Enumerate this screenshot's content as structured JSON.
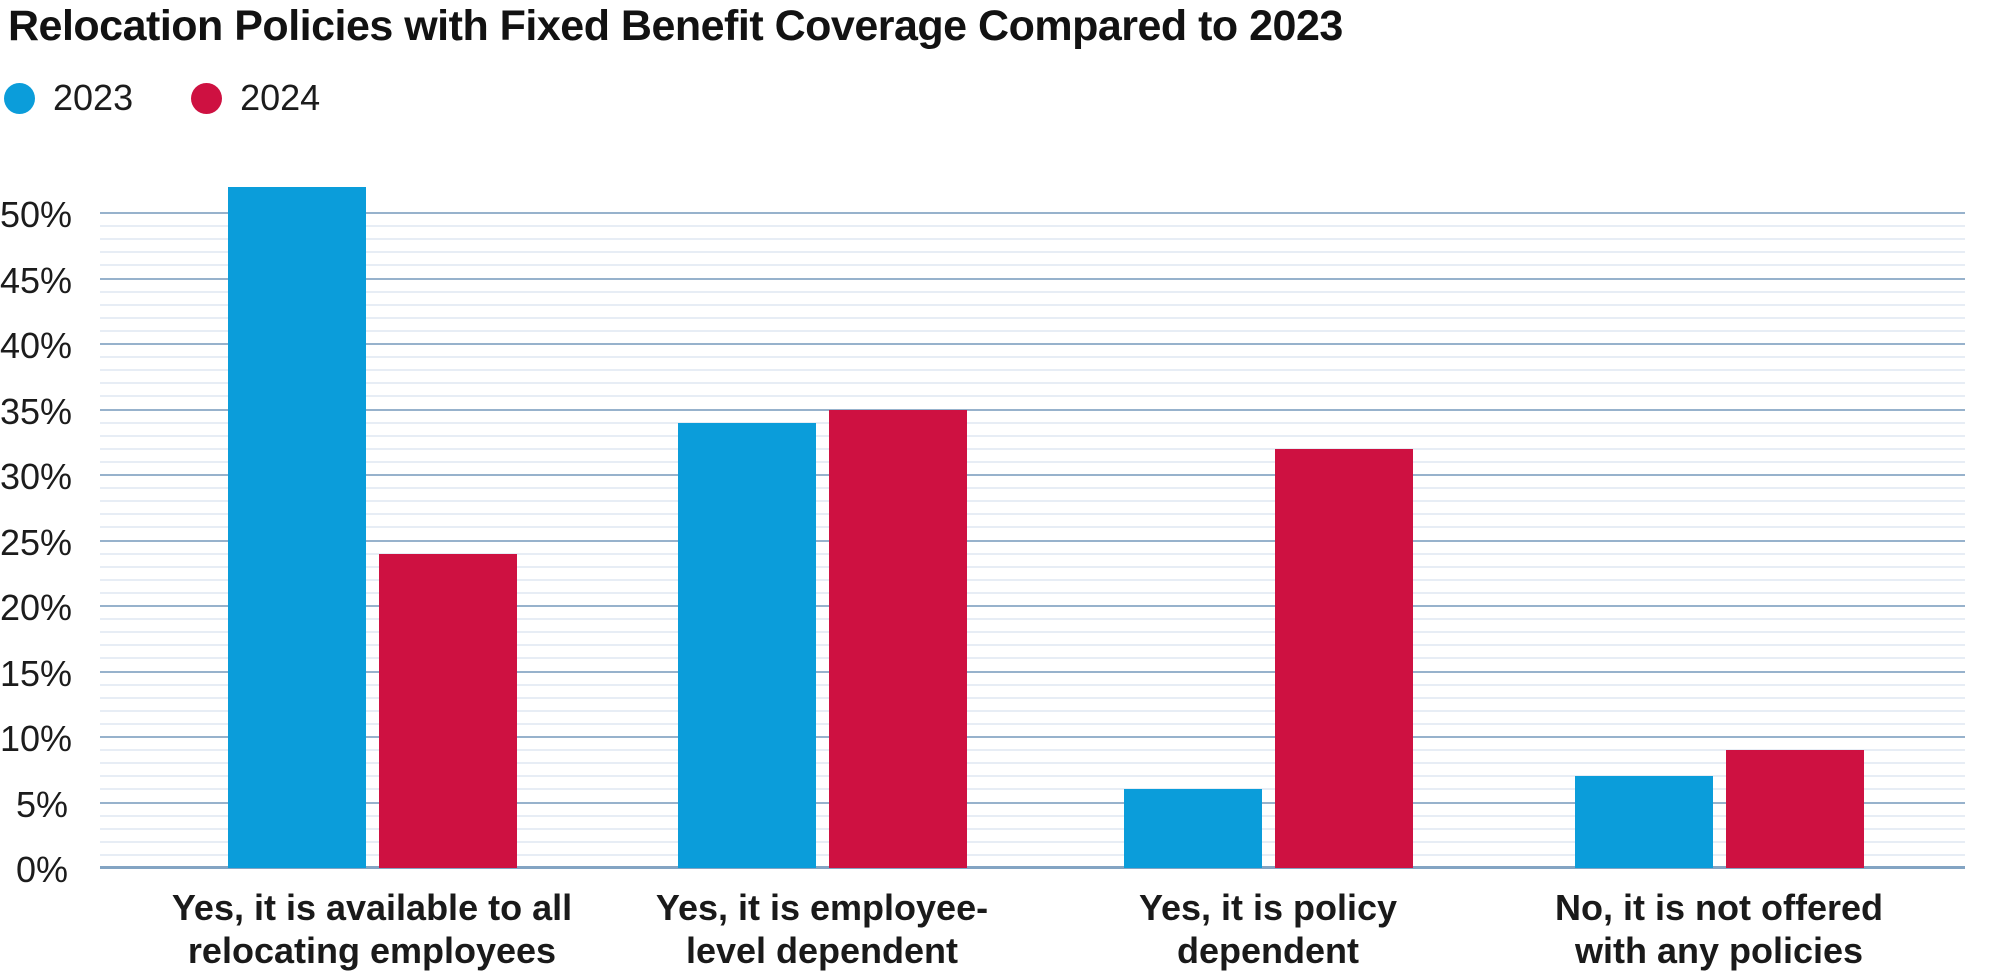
{
  "title": "Relocation Policies with Fixed Benefit Coverage Compared to 2023",
  "legend": {
    "items": [
      {
        "label": "2023",
        "color": "#0B9DDA"
      },
      {
        "label": "2024",
        "color": "#CE1141"
      }
    ]
  },
  "colors": {
    "series_2023": "#0B9DDA",
    "series_2024": "#CE1141",
    "text": "#1a1a1a",
    "major_gridline": "#97B2CC",
    "minor_gridline": "#E7EDF5",
    "axis_line": "#83A4C3"
  },
  "chart_data": {
    "type": "bar",
    "title": "Relocation Policies with Fixed Benefit Coverage Compared to 2023",
    "categories": [
      "Yes, it is available to all relocating employees",
      "Yes, it is employee-level dependent",
      "Yes, it is policy dependent",
      "No, it is not offered with any policies"
    ],
    "category_lines": [
      [
        "Yes, it is available to all",
        "relocating employees"
      ],
      [
        "Yes, it is employee-",
        "level dependent"
      ],
      [
        "Yes, it is policy",
        "dependent"
      ],
      [
        "No, it is not offered",
        "with any policies"
      ]
    ],
    "series": [
      {
        "name": "2023",
        "color": "#0B9DDA",
        "values": [
          52,
          34,
          6,
          7
        ]
      },
      {
        "name": "2024",
        "color": "#CE1141",
        "values": [
          24,
          35,
          32,
          9
        ]
      }
    ],
    "xlabel": "",
    "ylabel": "",
    "ylim": [
      0,
      50
    ],
    "y_major_step": 5,
    "y_minor_step": 1,
    "y_tick_labels": [
      "0%",
      "5%",
      "10%",
      "15%",
      "20%",
      "25%",
      "30%",
      "35%",
      "40%",
      "45%",
      "50%"
    ],
    "grid": "horizontal-on",
    "legend_position": "top-left"
  }
}
